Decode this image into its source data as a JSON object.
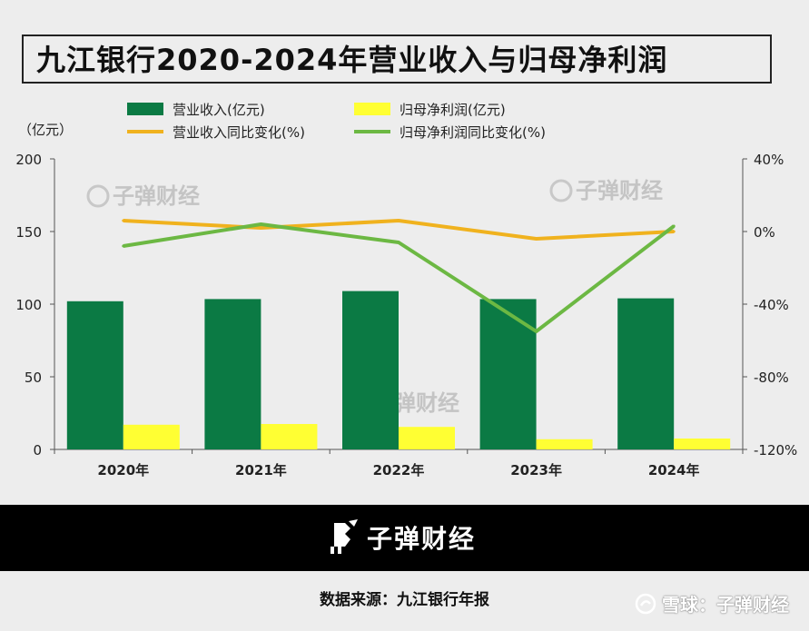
{
  "title": "九江银行2020-2024年营业收入与归母净利润",
  "chart_data": {
    "type": "bar",
    "categories": [
      "2020年",
      "2021年",
      "2022年",
      "2023年",
      "2024年"
    ],
    "y_left_unit": "（亿元）",
    "y_left_ticks": [
      "200",
      "150",
      "100",
      "50",
      "0"
    ],
    "y_left_lim": [
      0,
      200
    ],
    "y_right_ticks": [
      "40%",
      "0%",
      "-40%",
      "-80%",
      "-120%"
    ],
    "y_right_lim": [
      -120,
      40
    ],
    "series": [
      {
        "name": "营业收入(亿元)",
        "kind": "bar",
        "axis": "left",
        "color": "#0b7a44",
        "values": [
          102,
          103.5,
          109,
          103.5,
          104
        ]
      },
      {
        "name": "归母净利润(亿元)",
        "kind": "bar",
        "axis": "left",
        "color": "#ffff33",
        "values": [
          17,
          17.5,
          15.5,
          7,
          7.5
        ]
      },
      {
        "name": "营业收入同比变化(%)",
        "kind": "line",
        "axis": "right",
        "color": "#f0b21e",
        "values": [
          6,
          2,
          6,
          -4,
          0
        ]
      },
      {
        "name": "归母净利润同比变化(%)",
        "kind": "line",
        "axis": "right",
        "color": "#6cb843",
        "values": [
          -8,
          4,
          -6,
          -55,
          3
        ]
      }
    ],
    "grid": false,
    "legend_position": "top"
  },
  "watermark": "子弹财经",
  "footer": {
    "brand": "子弹财经",
    "source": "数据来源：九江银行年报",
    "platform": "雪球：子弹财经"
  }
}
